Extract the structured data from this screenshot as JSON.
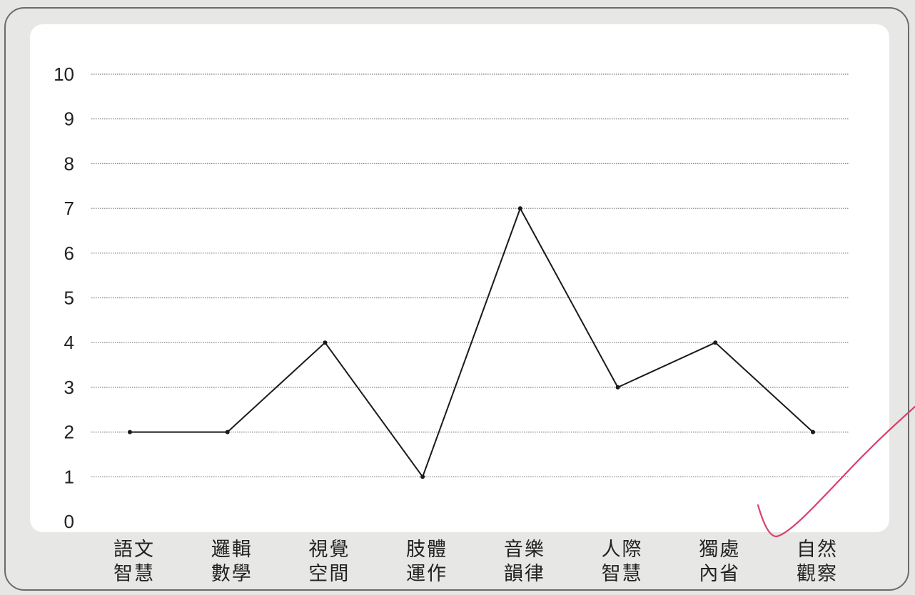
{
  "chart_data": {
    "type": "line",
    "title": "",
    "xlabel": "",
    "ylabel": "",
    "categories": [
      [
        "語文",
        "智慧"
      ],
      [
        "邏輯",
        "數學"
      ],
      [
        "視覺",
        "空間"
      ],
      [
        "肢體",
        "運作"
      ],
      [
        "音樂",
        "韻律"
      ],
      [
        "人際",
        "智慧"
      ],
      [
        "獨處",
        "內省"
      ],
      [
        "自然",
        "觀察"
      ]
    ],
    "y_ticks": [
      "0",
      "1",
      "2",
      "3",
      "4",
      "5",
      "6",
      "7",
      "8",
      "9",
      "10"
    ],
    "values": [
      2,
      2,
      4,
      1,
      7,
      3,
      4,
      2
    ],
    "ylim": [
      0,
      10
    ],
    "grid": true,
    "grid_style": "dotted",
    "legend": "none",
    "colors": {
      "line": "#1a1a1a",
      "grid": "#7a7a7a",
      "panel": "#ffffff",
      "frame_background": "#e7e7e5",
      "check_mark": "#d9406a"
    }
  },
  "annotations": {
    "check_mark_icon": "hand-drawn-check-icon"
  }
}
